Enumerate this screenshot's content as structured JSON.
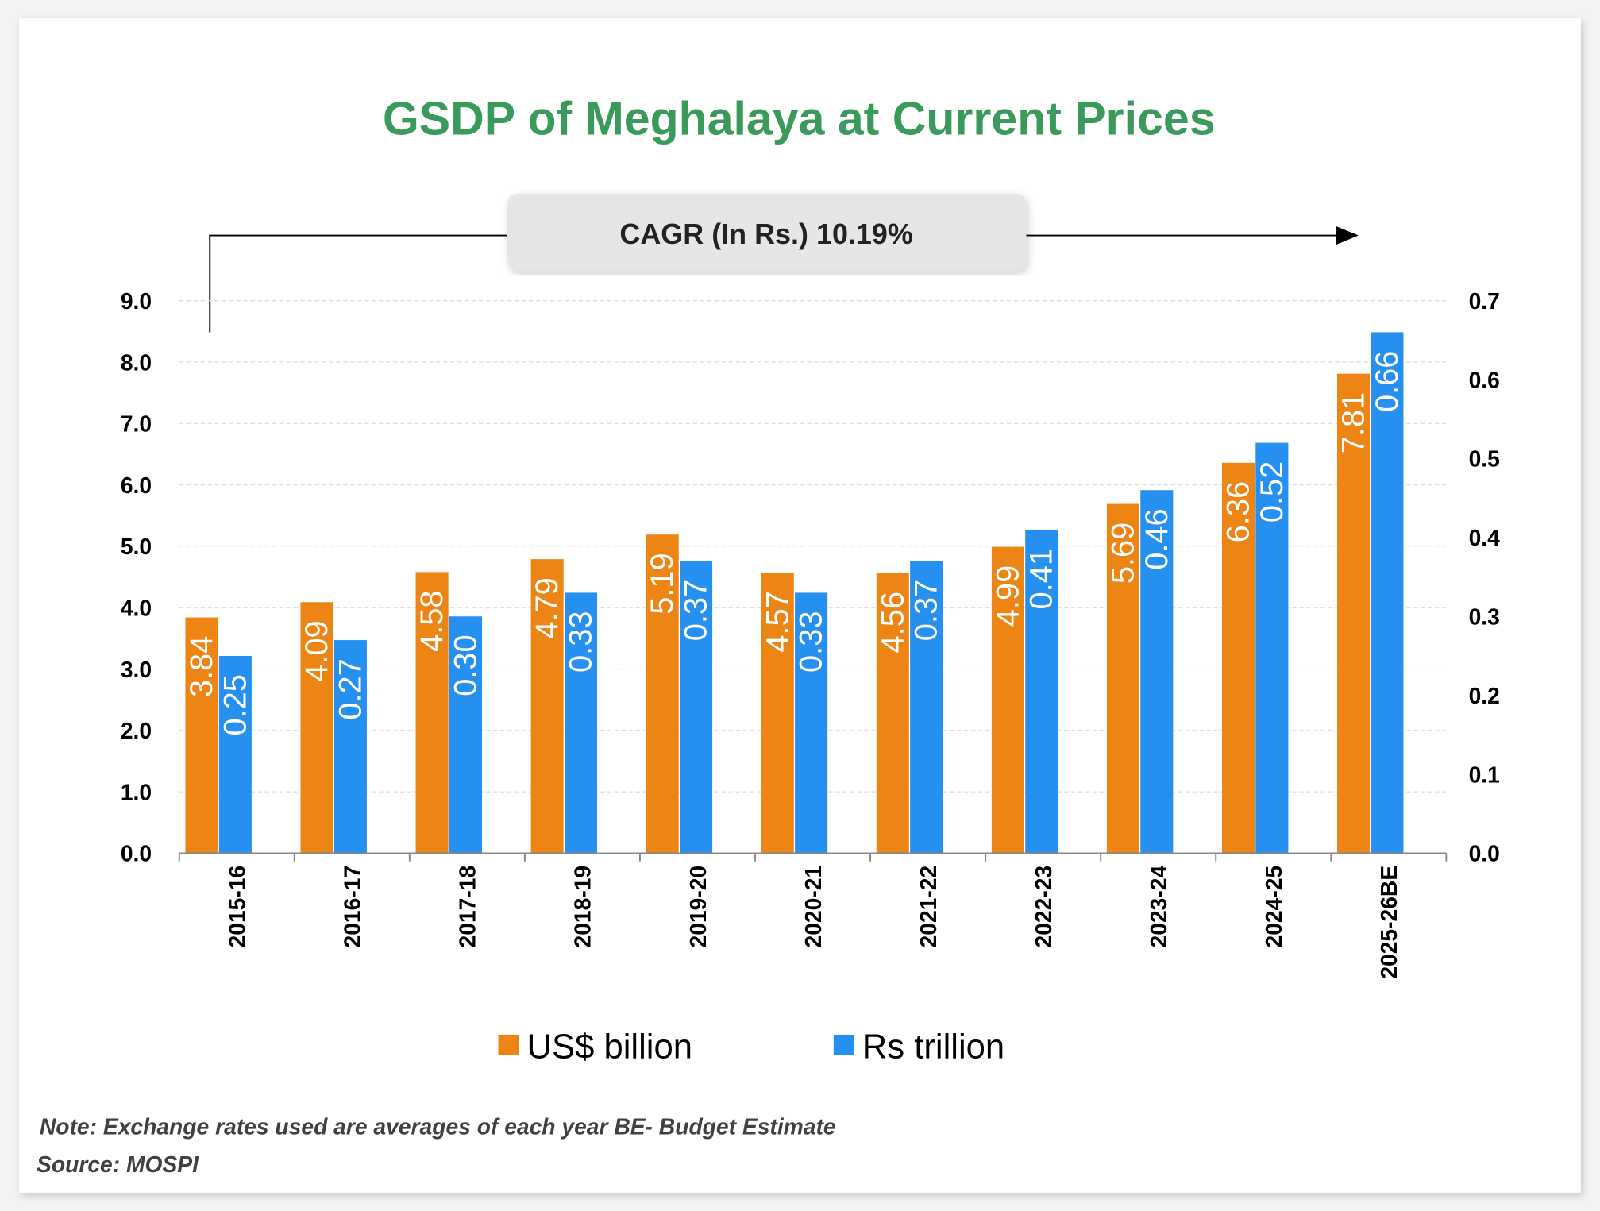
{
  "chart_data": {
    "type": "bar",
    "title": "GSDP of Meghalaya at Current Prices",
    "annotation": "CAGR (In Rs.) 10.19%",
    "categories": [
      "2015-16",
      "2016-17",
      "2017-18",
      "2018-19",
      "2019-20",
      "2020-21",
      "2021-22",
      "2022-23",
      "2023-24",
      "2024-25",
      "2025-26BE"
    ],
    "series": [
      {
        "name": "US$ billion",
        "axis": "left",
        "color": "#ed8515",
        "values": [
          3.84,
          4.09,
          4.58,
          4.79,
          5.19,
          4.57,
          4.56,
          4.99,
          5.69,
          6.36,
          7.81
        ],
        "labels": [
          "3.84",
          "4.09",
          "4.58",
          "4.79",
          "5.19",
          "4.57",
          "4.56",
          "4.99",
          "5.69",
          "6.36",
          "7.81"
        ]
      },
      {
        "name": "Rs trillion",
        "axis": "right",
        "color": "#2590f0",
        "values": [
          0.25,
          0.27,
          0.3,
          0.33,
          0.37,
          0.33,
          0.37,
          0.41,
          0.46,
          0.52,
          0.66
        ],
        "labels": [
          "0.25",
          "0.27",
          "0.30",
          "0.33",
          "0.37",
          "0.33",
          "0.37",
          "0.41",
          "0.46",
          "0.52",
          "0.66"
        ]
      }
    ],
    "left_axis": {
      "ylim": [
        0,
        9
      ],
      "ticks": [
        "0.0",
        "1.0",
        "2.0",
        "3.0",
        "4.0",
        "5.0",
        "6.0",
        "7.0",
        "8.0",
        "9.0"
      ]
    },
    "right_axis": {
      "ylim": [
        0,
        0.7
      ],
      "ticks": [
        "0.0",
        "0.1",
        "0.2",
        "0.3",
        "0.4",
        "0.5",
        "0.6",
        "0.7"
      ]
    },
    "grid": true,
    "legend": "bottom",
    "title_color": "#3a9a5b"
  },
  "footer": {
    "note": "Note: Exchange rates used are averages of each year BE- Budget Estimate",
    "source": "Source: MOSPI"
  }
}
